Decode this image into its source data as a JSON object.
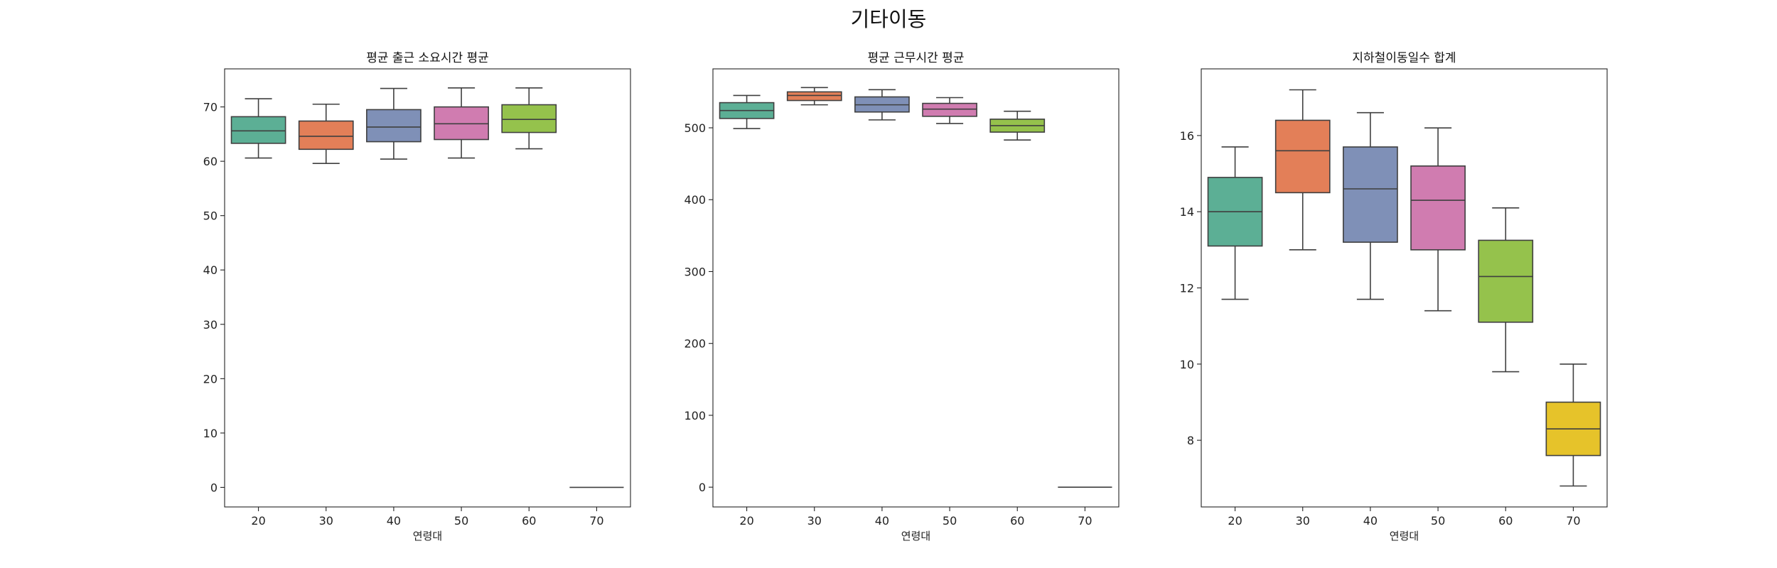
{
  "title": "기타이동",
  "palette": [
    "#66c2a5",
    "#fc8d62",
    "#8da0cb",
    "#e78ac3",
    "#a6d854",
    "#ffd92f"
  ],
  "chart_data": [
    {
      "type": "box",
      "title": "평균 출근 소요시간 평균",
      "xlabel": "연령대",
      "ylabel": "",
      "categories": [
        "20",
        "30",
        "40",
        "50",
        "60",
        "70"
      ],
      "ylim": [
        -3.6,
        77
      ],
      "yticks": [
        0,
        10,
        20,
        30,
        40,
        50,
        60,
        70
      ],
      "boxes": [
        {
          "min": 60.6,
          "q1": 63.3,
          "median": 65.6,
          "q3": 68.2,
          "max": 71.5
        },
        {
          "min": 59.6,
          "q1": 62.2,
          "median": 64.6,
          "q3": 67.4,
          "max": 70.5
        },
        {
          "min": 60.4,
          "q1": 63.6,
          "median": 66.3,
          "q3": 69.5,
          "max": 73.4
        },
        {
          "min": 60.6,
          "q1": 64.0,
          "median": 66.9,
          "q3": 70.0,
          "max": 73.5
        },
        {
          "min": 62.3,
          "q1": 65.3,
          "median": 67.7,
          "q3": 70.4,
          "max": 73.5
        },
        {
          "min": 0,
          "q1": 0,
          "median": 0,
          "q3": 0,
          "max": 0
        }
      ]
    },
    {
      "type": "box",
      "title": "평균 근무시간 평균",
      "xlabel": "연령대",
      "ylabel": "",
      "categories": [
        "20",
        "30",
        "40",
        "50",
        "60",
        "70"
      ],
      "ylim": [
        -27.5,
        582
      ],
      "yticks": [
        0,
        100,
        200,
        300,
        400,
        500
      ],
      "boxes": [
        {
          "min": 499,
          "q1": 513,
          "median": 524,
          "q3": 535,
          "max": 545
        },
        {
          "min": 532,
          "q1": 538,
          "median": 545,
          "q3": 550,
          "max": 556
        },
        {
          "min": 511,
          "q1": 522,
          "median": 532,
          "q3": 543,
          "max": 553
        },
        {
          "min": 506,
          "q1": 516,
          "median": 526,
          "q3": 534,
          "max": 542
        },
        {
          "min": 483,
          "q1": 494,
          "median": 503,
          "q3": 512,
          "max": 523
        },
        {
          "min": 0,
          "q1": 0,
          "median": 0,
          "q3": 0,
          "max": 0
        }
      ]
    },
    {
      "type": "box",
      "title": "지하철이동일수 합계",
      "xlabel": "연령대",
      "ylabel": "",
      "categories": [
        "20",
        "30",
        "40",
        "50",
        "60",
        "70"
      ],
      "ylim": [
        6.25,
        17.75
      ],
      "yticks": [
        8,
        10,
        12,
        14,
        16
      ],
      "boxes": [
        {
          "min": 11.7,
          "q1": 13.1,
          "median": 14.0,
          "q3": 14.9,
          "max": 15.7
        },
        {
          "min": 13.0,
          "q1": 14.5,
          "median": 15.6,
          "q3": 16.4,
          "max": 17.2
        },
        {
          "min": 11.7,
          "q1": 13.2,
          "median": 14.6,
          "q3": 15.7,
          "max": 16.6
        },
        {
          "min": 11.4,
          "q1": 13.0,
          "median": 14.3,
          "q3": 15.2,
          "max": 16.2
        },
        {
          "min": 9.8,
          "q1": 11.1,
          "median": 12.3,
          "q3": 13.25,
          "max": 14.1
        },
        {
          "min": 6.8,
          "q1": 7.6,
          "median": 8.3,
          "q3": 9.0,
          "max": 10.0
        }
      ]
    }
  ]
}
